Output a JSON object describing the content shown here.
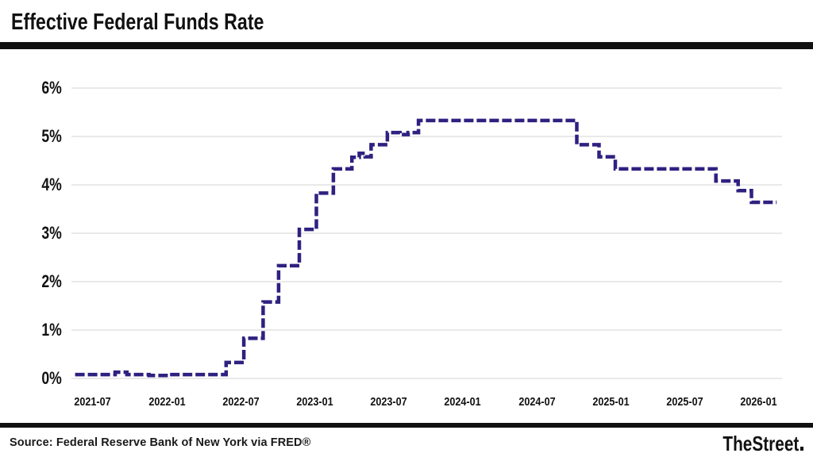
{
  "header": {
    "title": "Effective Federal Funds Rate"
  },
  "footer": {
    "source": "Source: Federal Reserve Bank of New York via FRED®",
    "brand": "TheStreet"
  },
  "chart_data": {
    "type": "line",
    "title": "Effective Federal Funds Rate",
    "line_style": "dashed step line",
    "line_color": "#2e2180",
    "grid_color": "#e9e9e9",
    "xlabel": "",
    "ylabel": "",
    "ylim": [
      0,
      6
    ],
    "grid": "horizontal only",
    "legend_position": "none",
    "y_ticks": [
      {
        "value": 0,
        "label": "0%"
      },
      {
        "value": 1,
        "label": "1%"
      },
      {
        "value": 2,
        "label": "2%"
      },
      {
        "value": 3,
        "label": "3%"
      },
      {
        "value": 4,
        "label": "4%"
      },
      {
        "value": 5,
        "label": "5%"
      },
      {
        "value": 6,
        "label": "6%"
      }
    ],
    "x_ticks": [
      {
        "t": 2021.5,
        "label": "2021-07"
      },
      {
        "t": 2022.0,
        "label": "2022-01"
      },
      {
        "t": 2022.5,
        "label": "2022-07"
      },
      {
        "t": 2023.0,
        "label": "2023-01"
      },
      {
        "t": 2023.5,
        "label": "2023-07"
      },
      {
        "t": 2024.0,
        "label": "2024-01"
      },
      {
        "t": 2024.5,
        "label": "2024-07"
      },
      {
        "t": 2025.0,
        "label": "2025-01"
      },
      {
        "t": 2025.5,
        "label": "2025-07"
      },
      {
        "t": 2026.0,
        "label": "2026-01"
      }
    ],
    "series": [
      {
        "name": "Effective Federal Funds Rate (%)",
        "interpolation": "step-after",
        "points": [
          [
            2021.38,
            0.08
          ],
          [
            2021.65,
            0.13
          ],
          [
            2021.73,
            0.08
          ],
          [
            2021.88,
            0.06
          ],
          [
            2022.02,
            0.08
          ],
          [
            2022.4,
            0.33
          ],
          [
            2022.52,
            0.83
          ],
          [
            2022.65,
            1.58
          ],
          [
            2022.755,
            2.33
          ],
          [
            2022.895,
            3.08
          ],
          [
            2023.01,
            3.83
          ],
          [
            2023.125,
            4.33
          ],
          [
            2023.25,
            4.57
          ],
          [
            2023.3,
            4.65
          ],
          [
            2023.34,
            4.58
          ],
          [
            2023.38,
            4.83
          ],
          [
            2023.49,
            5.08
          ],
          [
            2023.575,
            5.04
          ],
          [
            2023.63,
            5.08
          ],
          [
            2023.7,
            5.33
          ],
          [
            2024.77,
            4.83
          ],
          [
            2024.92,
            4.58
          ],
          [
            2025.03,
            4.33
          ],
          [
            2025.71,
            4.08
          ],
          [
            2025.86,
            3.88
          ],
          [
            2025.95,
            3.64
          ],
          [
            2026.12,
            3.64
          ]
        ]
      }
    ]
  }
}
